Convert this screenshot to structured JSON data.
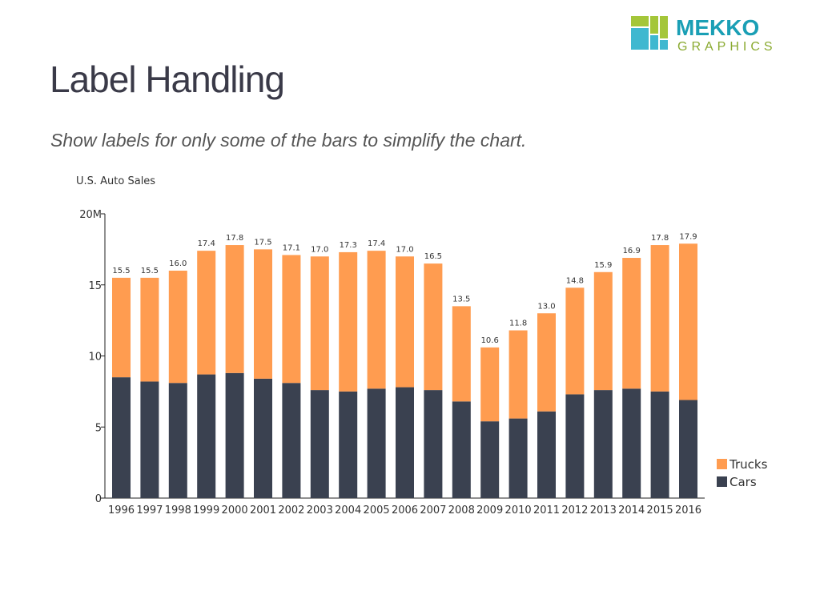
{
  "title": "Label Handling",
  "subtitle": "Show labels for only some of the bars to simplify the chart.",
  "logo": {
    "line1": "MEKKO",
    "line2": "GRAPHICS"
  },
  "chart_data": {
    "type": "bar",
    "stacked": true,
    "title": "U.S. Auto Sales",
    "categories": [
      "1996",
      "1997",
      "1998",
      "1999",
      "2000",
      "2001",
      "2002",
      "2003",
      "2004",
      "2005",
      "2006",
      "2007",
      "2008",
      "2009",
      "2010",
      "2011",
      "2012",
      "2013",
      "2014",
      "2015",
      "2016"
    ],
    "totals": [
      15.5,
      15.5,
      16.0,
      17.4,
      17.8,
      17.5,
      17.1,
      17.0,
      17.3,
      17.4,
      17.0,
      16.5,
      13.5,
      10.6,
      11.8,
      13.0,
      14.8,
      15.9,
      16.9,
      17.8,
      17.9
    ],
    "series": [
      {
        "name": "Cars",
        "color": "#3a4150",
        "values": [
          8.5,
          8.2,
          8.1,
          8.7,
          8.8,
          8.4,
          8.1,
          7.6,
          7.5,
          7.7,
          7.8,
          7.6,
          6.8,
          5.4,
          5.6,
          6.1,
          7.3,
          7.6,
          7.7,
          7.5,
          6.9
        ]
      },
      {
        "name": "Trucks",
        "color": "#ff9c50",
        "values": [
          7.0,
          7.3,
          7.9,
          8.7,
          9.0,
          9.1,
          9.0,
          9.4,
          9.8,
          9.7,
          9.2,
          8.9,
          6.7,
          5.2,
          6.2,
          6.9,
          7.5,
          8.3,
          9.2,
          10.3,
          11.0
        ]
      }
    ],
    "yticks": [
      "0",
      "5",
      "10",
      "15",
      "20M"
    ],
    "ylim": [
      0,
      20
    ],
    "legend": "right"
  }
}
